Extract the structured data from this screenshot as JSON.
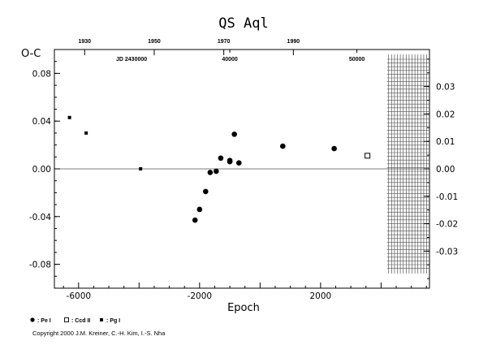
{
  "chart_data": {
    "type": "scatter",
    "title": "QS Aql",
    "ylabel": "O-C",
    "xlabel": "Epoch",
    "xlim": [
      -6800,
      5600
    ],
    "ylim": [
      -0.1,
      0.1
    ],
    "right_ylim": [
      -0.0435,
      0.0435
    ],
    "x_ticks": [
      -6000,
      -2000,
      2000
    ],
    "x_tick_labels": [
      "-6000",
      "-2000",
      "2000"
    ],
    "y_ticks": [
      0.08,
      0.04,
      0.0,
      -0.04,
      -0.08
    ],
    "y_tick_labels": [
      "0.08",
      "0.04",
      "0.00",
      "-0.04",
      "-0.08"
    ],
    "right_ticks": [
      0.03,
      0.02,
      0.01,
      0.0,
      -0.01,
      -0.02,
      -0.03
    ],
    "right_tick_labels": [
      "0.03",
      "0.02",
      "0.01",
      "0.00",
      "-0.01",
      "-0.02",
      "-0.03"
    ],
    "top_year_ticks": [
      {
        "label": "1930",
        "epoch": -5800
      },
      {
        "label": "1950",
        "epoch": -3500
      },
      {
        "label": "1970",
        "epoch": -1200
      },
      {
        "label": "1990",
        "epoch": 1100
      }
    ],
    "top_jd_ticks": [
      {
        "label": "40000",
        "epoch": -1000
      },
      {
        "label": "50000",
        "epoch": 3200
      }
    ],
    "jd_label": "JD 2430000",
    "zero_line": 0.0,
    "hatched_region": {
      "from": 4250,
      "to": 5600
    },
    "series": [
      {
        "name": "Pe I",
        "marker": "filled-circle",
        "x": [
          -2150,
          -2000,
          -1800,
          -1650,
          -1450,
          -1300,
          -1000,
          -1000,
          -850,
          -700,
          750,
          2450
        ],
        "y": [
          -0.043,
          -0.034,
          -0.019,
          -0.003,
          -0.002,
          0.009,
          0.006,
          0.007,
          0.029,
          0.005,
          0.019,
          0.017
        ]
      },
      {
        "name": "Ccd II",
        "marker": "open-square",
        "x": [
          3550
        ],
        "y": [
          0.011
        ]
      },
      {
        "name": "Pg I",
        "marker": "filled-square",
        "x": [
          -6300,
          -5750,
          -3950
        ],
        "y": [
          0.043,
          0.03,
          0.0
        ]
      }
    ],
    "legend": [
      {
        "label": ": Pe I",
        "marker": "filled-circle"
      },
      {
        "label": ": Ccd II",
        "marker": "open-square"
      },
      {
        "label": ": Pg I",
        "marker": "filled-square"
      }
    ],
    "legend_position": "bottom-left"
  },
  "copyright": "Copyright 2000 J.M. Kreiner, C.-H. Kim, I.-S. Nha"
}
